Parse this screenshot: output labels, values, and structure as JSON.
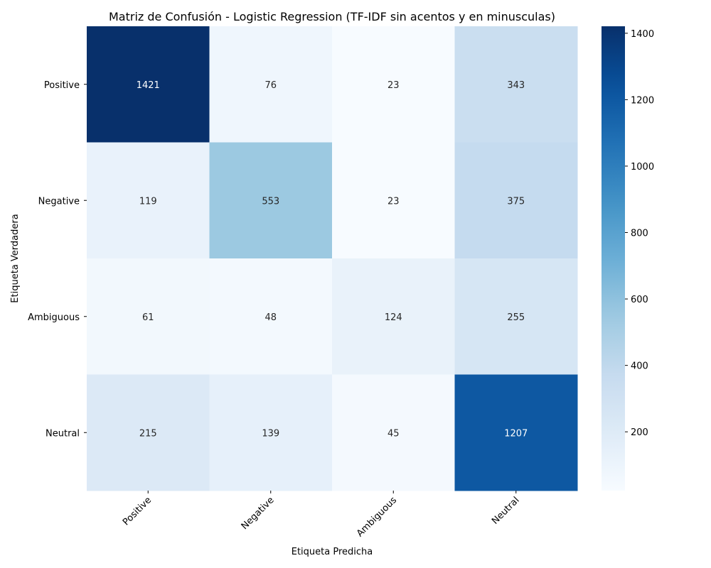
{
  "chart_data": {
    "type": "heatmap",
    "title": "Matriz de Confusión - Logistic Regression (TF-IDF sin acentos y en minusculas)",
    "xlabel": "Etiqueta Predicha",
    "ylabel": "Etiqueta Verdadera",
    "x_categories": [
      "Positive",
      "Negative",
      "Ambiguous",
      "Neutral"
    ],
    "y_categories": [
      "Positive",
      "Negative",
      "Ambiguous",
      "Neutral"
    ],
    "values": [
      [
        1421,
        76,
        23,
        343
      ],
      [
        119,
        553,
        23,
        375
      ],
      [
        61,
        48,
        124,
        255
      ],
      [
        215,
        139,
        45,
        1207
      ]
    ],
    "colormap": "Blues",
    "vmin": 23,
    "vmax": 1421,
    "colorbar_ticks": [
      200,
      400,
      600,
      800,
      1000,
      1200,
      1400
    ],
    "grid": false
  }
}
